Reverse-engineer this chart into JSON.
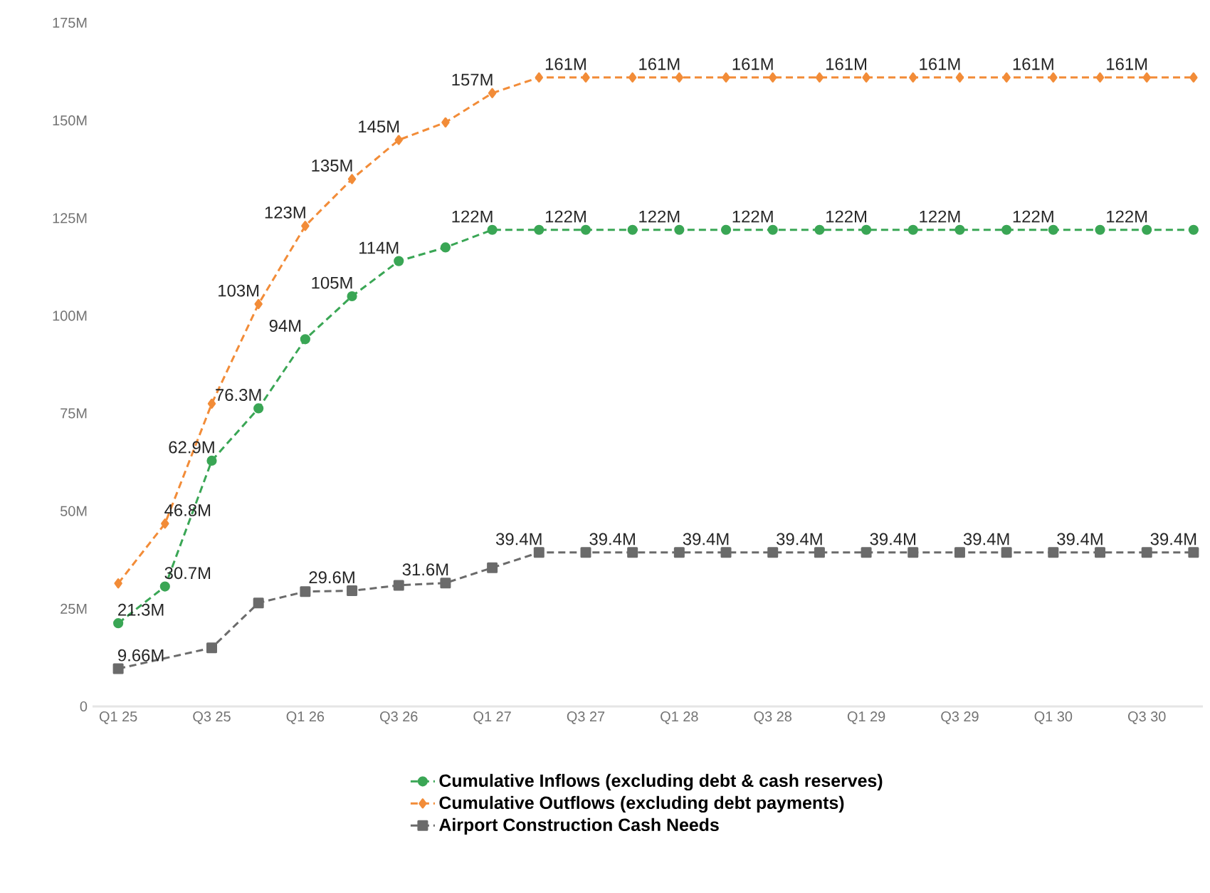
{
  "chart_data": {
    "type": "line",
    "categories": [
      "Q1 25",
      null,
      "Q3 25",
      null,
      "Q1 26",
      null,
      "Q3 26",
      null,
      "Q1 27",
      null,
      "Q3 27",
      null,
      "Q1 28",
      null,
      "Q3 28",
      null,
      "Q1 29",
      null,
      "Q3 29",
      null,
      "Q1 30",
      null,
      "Q3 30",
      null
    ],
    "series": [
      {
        "name": "Cumulative Inflows (excluding debt & cash reserves)",
        "color": "#3aa655",
        "marker": "circle",
        "values": [
          21.3,
          30.7,
          62.9,
          76.3,
          94,
          105,
          114,
          117.5,
          122,
          122,
          122,
          122,
          122,
          122,
          122,
          122,
          122,
          122,
          122,
          122,
          122,
          122,
          122,
          122
        ],
        "value_labels": [
          "21.3M",
          "30.7M",
          "62.9M",
          "76.3M",
          "94M",
          "105M",
          "114M",
          null,
          "122M",
          null,
          "122M",
          null,
          "122M",
          null,
          "122M",
          null,
          "122M",
          null,
          "122M",
          null,
          "122M",
          null,
          "122M",
          null
        ]
      },
      {
        "name": "Cumulative Outflows (excluding debt payments)",
        "color": "#f28c38",
        "marker": "diamond",
        "values": [
          31.5,
          46.8,
          77.5,
          103,
          123,
          135,
          145,
          149.5,
          157,
          161,
          161,
          161,
          161,
          161,
          161,
          161,
          161,
          161,
          161,
          161,
          161,
          161,
          161,
          161
        ],
        "value_labels": [
          null,
          "46.8M",
          null,
          "103M",
          "123M",
          "135M",
          "145M",
          null,
          "157M",
          null,
          "161M",
          null,
          "161M",
          null,
          "161M",
          null,
          "161M",
          null,
          "161M",
          null,
          "161M",
          null,
          "161M",
          null
        ]
      },
      {
        "name": "Airport Construction Cash Needs",
        "color": "#6b6b6b",
        "marker": "square",
        "values": [
          9.66,
          null,
          15,
          26.5,
          29.4,
          29.6,
          31,
          31.6,
          35.5,
          39.4,
          39.4,
          39.4,
          39.4,
          39.4,
          39.4,
          39.4,
          39.4,
          39.4,
          39.4,
          39.4,
          39.4,
          39.4,
          39.4,
          39.4
        ],
        "value_labels": [
          "9.66M",
          null,
          null,
          null,
          null,
          "29.6M",
          null,
          "31.6M",
          null,
          "39.4M",
          null,
          "39.4M",
          null,
          "39.4M",
          null,
          "39.4M",
          null,
          "39.4M",
          null,
          "39.4M",
          null,
          "39.4M",
          null,
          "39.4M"
        ]
      }
    ],
    "ylim": [
      0,
      175
    ],
    "yticks": [
      0,
      {
        "value": 25,
        "label": "25M"
      },
      {
        "value": 50,
        "label": "50M"
      },
      {
        "value": 75,
        "label": "75M"
      },
      {
        "value": 100,
        "label": "100M"
      },
      {
        "value": 125,
        "label": "125M"
      },
      {
        "value": 150,
        "label": "150M"
      },
      {
        "value": 175,
        "label": "175M"
      }
    ],
    "line_style": "dashed",
    "legend": "bottom"
  }
}
